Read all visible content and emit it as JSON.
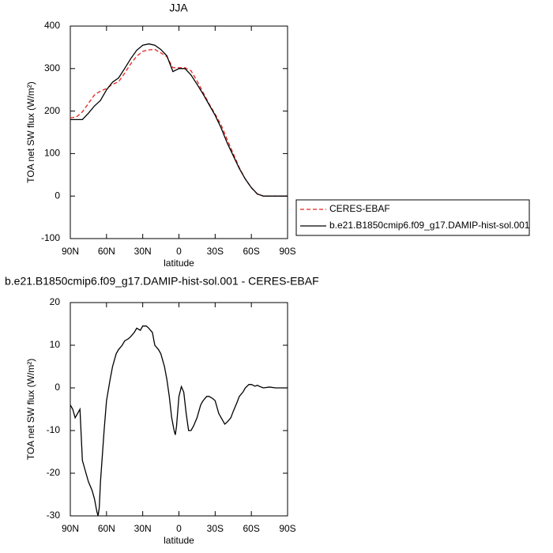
{
  "chart_data": [
    {
      "type": "line",
      "title": "JJA",
      "xlabel": "latitude",
      "ylabel": "TOA net SW flux (W/m²)",
      "x": [
        90,
        85,
        80,
        75,
        70,
        65,
        60,
        55,
        50,
        45,
        40,
        35,
        30,
        25,
        20,
        15,
        10,
        5,
        0,
        -5,
        -10,
        -15,
        -20,
        -25,
        -30,
        -35,
        -40,
        -45,
        -50,
        -55,
        -60,
        -65,
        -70,
        -75,
        -80,
        -85,
        -90
      ],
      "xlim": [
        90,
        -90
      ],
      "xticks": [
        {
          "value": 90,
          "label": "90N"
        },
        {
          "value": 60,
          "label": "60N"
        },
        {
          "value": 30,
          "label": "30N"
        },
        0,
        {
          "value": -30,
          "label": "30S"
        },
        {
          "value": -60,
          "label": "60S"
        },
        {
          "value": -90,
          "label": "90S"
        }
      ],
      "ylim": [
        -100,
        400
      ],
      "yticks": [
        -100,
        0,
        100,
        200,
        300,
        400
      ],
      "legend": "right",
      "series": [
        {
          "name": "CERES-EBAF",
          "color": "#e8221c",
          "line_style": "dashed",
          "values": [
            184,
            186,
            198,
            218,
            238,
            247,
            253,
            263,
            269,
            289,
            311,
            329,
            340.5,
            344,
            345,
            337,
            328,
            302,
            302,
            302,
            295,
            271,
            244,
            217,
            193,
            167,
            133,
            100,
            67,
            40,
            19.5,
            4.5,
            0,
            0,
            0,
            0,
            0
          ]
        },
        {
          "name": "b.e21.B1850cmip6.f09_g17.DAMIP-hist-sol.001",
          "color": "#000000",
          "line_style": "solid",
          "values": [
            180,
            180,
            180,
            195,
            212,
            225,
            250,
            268,
            278,
            300,
            323,
            343,
            355,
            358,
            355,
            345,
            330,
            293,
            300,
            300,
            285,
            263,
            240,
            215,
            190,
            160,
            125,
            95,
            65,
            40,
            20,
            5,
            0,
            0,
            0,
            0,
            0
          ]
        }
      ]
    },
    {
      "type": "line",
      "title": "b.e21.B1850cmip6.f09_g17.DAMIP-hist-sol.001 - CERES-EBAF",
      "xlabel": "latitude",
      "ylabel": "TOA net SW flux (W/m²)",
      "x": [
        90,
        88,
        86,
        84,
        82,
        80,
        77,
        75,
        72,
        70,
        68,
        67,
        66,
        65,
        62,
        60,
        57,
        55,
        52,
        50,
        47,
        45,
        42,
        40,
        37,
        35,
        32,
        30,
        27,
        25,
        22,
        20,
        17,
        15,
        12,
        10,
        8,
        6,
        4,
        3,
        2,
        0,
        -2,
        -4,
        -6,
        -8,
        -10,
        -12,
        -15,
        -18,
        -20,
        -23,
        -25,
        -28,
        -30,
        -33,
        -35,
        -38,
        -40,
        -43,
        -45,
        -48,
        -50,
        -53,
        -55,
        -58,
        -60,
        -63,
        -65,
        -68,
        -70,
        -75,
        -80,
        -85,
        -90
      ],
      "values": [
        -4,
        -5,
        -7,
        -6,
        -5,
        -17,
        -20,
        -22,
        -24,
        -26,
        -29,
        -30,
        -28,
        -22,
        -10,
        -3,
        2,
        5,
        8,
        9,
        10,
        11,
        11.5,
        12,
        13,
        14,
        13.5,
        14.5,
        14.5,
        14,
        13,
        10,
        9,
        8,
        5,
        2,
        -2,
        -7,
        -10,
        -11,
        -9,
        -2,
        0.3,
        -1,
        -6,
        -10,
        -10,
        -9,
        -7,
        -4,
        -3,
        -2,
        -2,
        -2.5,
        -3,
        -6,
        -7,
        -8.5,
        -8,
        -7,
        -5.5,
        -3.5,
        -2,
        -1,
        0,
        0.8,
        0.8,
        0.4,
        0.6,
        0.2,
        0,
        0.2,
        0,
        0,
        0
      ],
      "color": "#000000",
      "xlim": [
        90,
        -90
      ],
      "xticks": [
        {
          "value": 90,
          "label": "90N"
        },
        {
          "value": 60,
          "label": "60N"
        },
        {
          "value": 30,
          "label": "30N"
        },
        0,
        {
          "value": -30,
          "label": "30S"
        },
        {
          "value": -60,
          "label": "60S"
        },
        {
          "value": -90,
          "label": "90S"
        }
      ],
      "ylim": [
        -30,
        20
      ],
      "yticks": [
        -30,
        -20,
        -10,
        0,
        10,
        20
      ]
    }
  ]
}
